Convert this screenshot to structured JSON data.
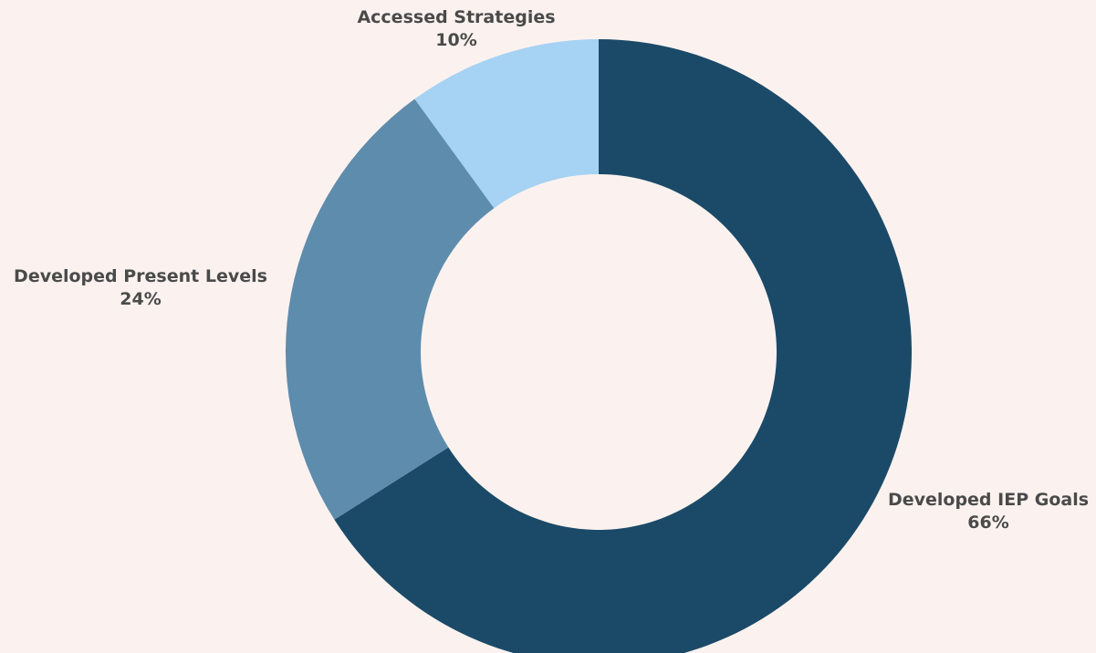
{
  "chart_data": {
    "type": "pie",
    "title": "",
    "style": "donut",
    "slices": [
      {
        "label": "Developed IEP Goals",
        "value": 66,
        "display": "66%",
        "color": "#1b4a68"
      },
      {
        "label": "Developed Present Levels",
        "value": 24,
        "display": "24%",
        "color": "#5e8cad"
      },
      {
        "label": "Accessed Strategies",
        "value": 10,
        "display": "10%",
        "color": "#a6d2f3"
      }
    ],
    "legend": "none"
  },
  "background_color": "#fbf2ef"
}
